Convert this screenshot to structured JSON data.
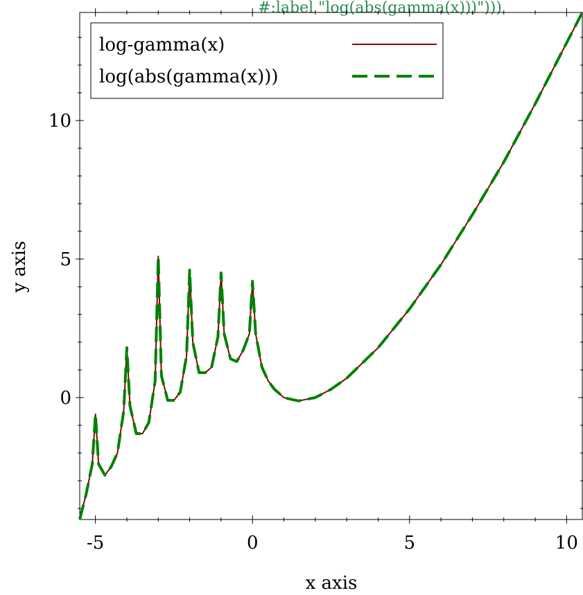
{
  "chart_data": {
    "type": "line",
    "title": "",
    "top_label": "#:label \"log(abs(gamma(x)))\")))",
    "xlabel": "x axis",
    "ylabel": "y axis",
    "xlim": [
      -5.5,
      10.5
    ],
    "ylim": [
      -4.4,
      13.9
    ],
    "x_ticks": [
      -5,
      0,
      5,
      10
    ],
    "x_tick_labels": [
      "-5",
      "0",
      "5",
      "10"
    ],
    "x_minor_step": 1,
    "y_ticks": [
      0,
      5,
      10
    ],
    "y_tick_labels": [
      "0",
      "5",
      "10"
    ],
    "y_minor_step": 1,
    "grid": false,
    "legend_position": "top-left",
    "series": [
      {
        "name": "log-gamma(x)",
        "style": "solid",
        "color": "#8b0000",
        "x": [
          -5.5,
          -5.3,
          -5.1,
          -5.0,
          -4.9,
          -4.7,
          -4.5,
          -4.3,
          -4.1,
          -4.0,
          -3.9,
          -3.7,
          -3.5,
          -3.3,
          -3.1,
          -3.0,
          -2.9,
          -2.7,
          -2.5,
          -2.3,
          -2.1,
          -2.0,
          -1.9,
          -1.7,
          -1.5,
          -1.3,
          -1.1,
          -1.0,
          -0.9,
          -0.7,
          -0.5,
          -0.3,
          -0.1,
          0.0,
          0.1,
          0.3,
          0.5,
          0.7,
          1.0,
          1.46,
          2.0,
          2.5,
          3.0,
          4.0,
          5.0,
          6.0,
          7.0,
          8.0,
          9.0,
          10.0,
          10.5
        ],
        "y": [
          -4.4,
          -3.5,
          -2.4,
          -0.6,
          -2.4,
          -2.8,
          -2.5,
          -2.0,
          -0.5,
          1.8,
          -0.3,
          -1.3,
          -1.3,
          -0.9,
          0.6,
          5.1,
          0.8,
          -0.1,
          -0.1,
          0.2,
          1.5,
          4.6,
          2.0,
          0.9,
          0.9,
          1.1,
          2.2,
          4.5,
          2.3,
          1.4,
          1.3,
          1.7,
          2.3,
          4.2,
          2.3,
          1.1,
          0.6,
          0.3,
          0.0,
          -0.12,
          0.0,
          0.3,
          0.7,
          1.8,
          3.2,
          4.8,
          6.6,
          8.5,
          10.6,
          12.8,
          13.9
        ]
      },
      {
        "name": "log(abs(gamma(x)))",
        "style": "dashed",
        "color": "#008000",
        "x": [
          -5.5,
          -5.3,
          -5.1,
          -5.0,
          -4.9,
          -4.7,
          -4.5,
          -4.3,
          -4.1,
          -4.0,
          -3.9,
          -3.7,
          -3.5,
          -3.3,
          -3.1,
          -3.0,
          -2.9,
          -2.7,
          -2.5,
          -2.3,
          -2.1,
          -2.0,
          -1.9,
          -1.7,
          -1.5,
          -1.3,
          -1.1,
          -1.0,
          -0.9,
          -0.7,
          -0.5,
          -0.3,
          -0.1,
          0.0,
          0.1,
          0.3,
          0.5,
          0.7,
          1.0,
          1.46,
          2.0,
          2.5,
          3.0,
          4.0,
          5.0,
          6.0,
          7.0,
          8.0,
          9.0,
          10.0,
          10.5
        ],
        "y": [
          -4.4,
          -3.5,
          -2.4,
          -0.6,
          -2.4,
          -2.8,
          -2.5,
          -2.0,
          -0.5,
          1.8,
          -0.3,
          -1.3,
          -1.3,
          -0.9,
          0.6,
          5.1,
          0.8,
          -0.1,
          -0.1,
          0.2,
          1.5,
          4.6,
          2.0,
          0.9,
          0.9,
          1.1,
          2.2,
          4.5,
          2.3,
          1.4,
          1.3,
          1.7,
          2.3,
          4.2,
          2.3,
          1.1,
          0.6,
          0.3,
          0.0,
          -0.12,
          0.0,
          0.3,
          0.7,
          1.8,
          3.2,
          4.8,
          6.6,
          8.5,
          10.6,
          12.8,
          13.9
        ]
      }
    ]
  }
}
